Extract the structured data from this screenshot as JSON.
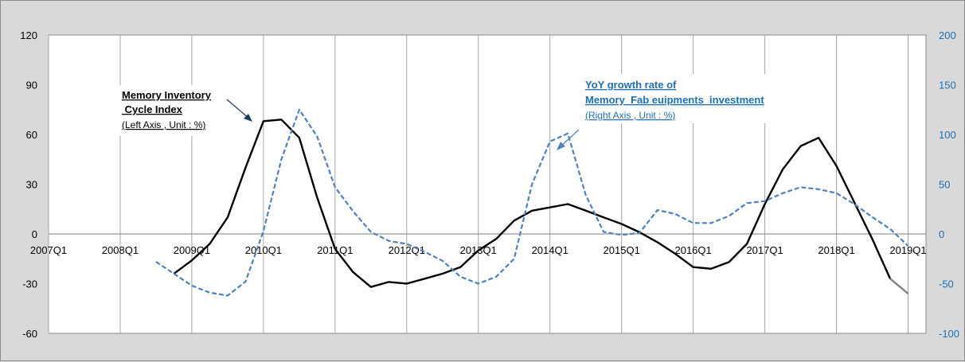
{
  "chart_data": {
    "type": "line",
    "x_categories": [
      "2007Q1",
      "2008Q1",
      "2009Q1",
      "2010Q1",
      "2011Q1",
      "2012Q1",
      "2013Q1",
      "2014Q1",
      "2015Q1",
      "2016Q1",
      "2017Q1",
      "2018Q1",
      "2019Q1"
    ],
    "x_start_quarter": "2007Q1",
    "x_end_quarter": "2019Q2",
    "y_left": {
      "min": -60,
      "max": 120,
      "ticks": [
        -60,
        -30,
        0,
        30,
        60,
        90,
        120
      ]
    },
    "y_right": {
      "min": -100,
      "max": 200,
      "ticks": [
        -100,
        -50,
        0,
        50,
        100,
        150,
        200
      ]
    },
    "grid": "vertical",
    "series": [
      {
        "axis": "left",
        "color": "#000000",
        "style": "solid",
        "quarters": [
          "2008Q4",
          "2009Q1",
          "2009Q2",
          "2009Q3",
          "2009Q4",
          "2010Q1",
          "2010Q2",
          "2010Q3",
          "2010Q4",
          "2011Q1",
          "2011Q2",
          "2011Q3",
          "2011Q4",
          "2012Q1",
          "2012Q2",
          "2012Q3",
          "2012Q4",
          "2013Q1",
          "2013Q2",
          "2013Q3",
          "2013Q4",
          "2014Q1",
          "2014Q2",
          "2014Q3",
          "2014Q4",
          "2015Q1",
          "2015Q2",
          "2015Q3",
          "2015Q4",
          "2016Q1",
          "2016Q2",
          "2016Q3",
          "2016Q4",
          "2017Q1",
          "2017Q2",
          "2017Q3",
          "2017Q4",
          "2018Q1",
          "2018Q2",
          "2018Q3",
          "2018Q4"
        ],
        "values": [
          -24,
          -16,
          -6,
          10,
          40,
          68,
          69,
          58,
          22,
          -9,
          -23,
          -32,
          -29,
          -30,
          -27,
          -24,
          -20,
          -10,
          -3,
          8,
          14,
          16,
          18,
          14,
          10,
          6,
          1,
          -5,
          -12,
          -20,
          -21,
          -17,
          -6,
          18,
          39,
          53,
          58,
          41,
          19,
          -3,
          -27
        ]
      },
      {
        "axis": "left",
        "color": "#808080",
        "style": "solid",
        "quarters": [
          "2018Q4",
          "2019Q1"
        ],
        "values": [
          -27,
          -36
        ]
      },
      {
        "axis": "right",
        "color": "#4f81bd",
        "style": "dashed",
        "quarters": [
          "2008Q3",
          "2008Q4",
          "2009Q1",
          "2009Q2",
          "2009Q3",
          "2009Q4",
          "2010Q1",
          "2010Q2",
          "2010Q3",
          "2010Q4",
          "2011Q1",
          "2011Q2",
          "2011Q3",
          "2011Q4",
          "2012Q1",
          "2012Q2",
          "2012Q3",
          "2012Q4",
          "2013Q1",
          "2013Q2",
          "2013Q3",
          "2013Q4",
          "2014Q1",
          "2014Q2",
          "2014Q3",
          "2014Q4",
          "2015Q1",
          "2015Q2",
          "2015Q3",
          "2015Q4",
          "2016Q1",
          "2016Q2",
          "2016Q3",
          "2016Q4",
          "2017Q1",
          "2017Q2",
          "2017Q3",
          "2017Q4",
          "2018Q1",
          "2018Q2",
          "2018Q3",
          "2018Q4",
          "2019Q1"
        ],
        "values": [
          -28,
          -40,
          -52,
          -59,
          -62,
          -48,
          3,
          75,
          125,
          98,
          47,
          23,
          2,
          -7,
          -10,
          -18,
          -27,
          -43,
          -50,
          -43,
          -25,
          50,
          93,
          101,
          39,
          2,
          -1,
          1,
          24,
          20,
          11,
          11,
          18,
          31,
          33,
          41,
          47,
          45,
          41,
          30,
          17,
          5,
          -12
        ]
      }
    ],
    "annotations": [
      {
        "lines": [
          "Memory Inventory",
          " Cycle Index"
        ],
        "sub": "(Left Axis , Unit : %)"
      },
      {
        "lines": [
          "YoY growth rate of",
          "Memory  Fab euipments  investment"
        ],
        "sub": "(Right Axis , Unit : %)"
      }
    ]
  }
}
